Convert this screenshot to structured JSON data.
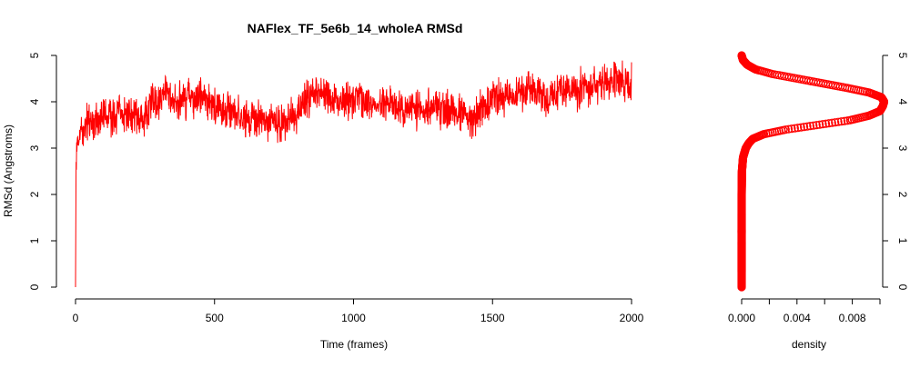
{
  "chart_data": [
    {
      "type": "line",
      "title": "NAFlex_TF_5e6b_14_wholeA RMSd",
      "xlabel": "Time (frames)",
      "ylabel": "RMSd (Angstroms)",
      "xlim": [
        0,
        2000
      ],
      "ylim": [
        0,
        5
      ],
      "xticks": [
        0,
        500,
        1000,
        1500,
        2000
      ],
      "yticks": [
        0,
        1,
        2,
        3,
        4,
        5
      ],
      "grid": false,
      "legend": "none",
      "color": "#ff0000",
      "series": [
        {
          "x": [
            0,
            2,
            5,
            10,
            20,
            30,
            50,
            75,
            100,
            125,
            150,
            200,
            250,
            275,
            300,
            325,
            350,
            400,
            450,
            500,
            550,
            600,
            650,
            700,
            750,
            800,
            850,
            875,
            900,
            950,
            1000,
            1050,
            1100,
            1150,
            1200,
            1250,
            1300,
            1350,
            1400,
            1430,
            1450,
            1480,
            1500,
            1550,
            1600,
            1650,
            1700,
            1750,
            1800,
            1850,
            1900,
            1950,
            2000
          ],
          "values": [
            0.0,
            2.7,
            3.0,
            3.2,
            3.35,
            3.5,
            3.6,
            3.65,
            3.7,
            3.72,
            3.68,
            3.7,
            3.65,
            4.05,
            4.0,
            4.15,
            4.0,
            4.05,
            4.1,
            3.95,
            3.8,
            3.65,
            3.55,
            3.6,
            3.5,
            3.75,
            4.2,
            4.1,
            4.25,
            4.0,
            4.05,
            3.95,
            4.0,
            3.85,
            3.8,
            3.9,
            3.85,
            3.8,
            3.75,
            3.55,
            3.8,
            3.95,
            4.15,
            4.05,
            4.2,
            4.3,
            4.1,
            4.2,
            4.25,
            4.35,
            4.4,
            4.45,
            4.4
          ]
        }
      ]
    },
    {
      "type": "scatter",
      "xlabel": "density",
      "xlim": [
        0,
        0.01
      ],
      "ylim": [
        0,
        5
      ],
      "xticks": [
        "0.000",
        "0.004",
        "0.008"
      ],
      "xtick_values": [
        0.0,
        0.004,
        0.008
      ],
      "yticks": [
        0,
        1,
        2,
        3,
        4,
        5
      ],
      "grid": false,
      "legend": "none",
      "color": "#ff0000",
      "series": [
        {
          "y": [
            0.0,
            0.5,
            1.0,
            1.5,
            2.0,
            2.5,
            2.8,
            3.0,
            3.1,
            3.2,
            3.3,
            3.4,
            3.5,
            3.6,
            3.7,
            3.8,
            3.9,
            4.0,
            4.1,
            4.2,
            4.3,
            4.4,
            4.5,
            4.6,
            4.7,
            4.8,
            4.9,
            5.0
          ],
          "x": [
            0.0,
            0.0,
            0.0,
            0.0,
            0.0,
            2e-05,
            0.0001,
            0.0003,
            0.0005,
            0.0008,
            0.0016,
            0.0032,
            0.0055,
            0.0078,
            0.0092,
            0.01,
            0.0102,
            0.0103,
            0.0101,
            0.0092,
            0.0076,
            0.0058,
            0.004,
            0.0022,
            0.001,
            0.0004,
            0.0001,
            0.0
          ]
        }
      ]
    }
  ]
}
